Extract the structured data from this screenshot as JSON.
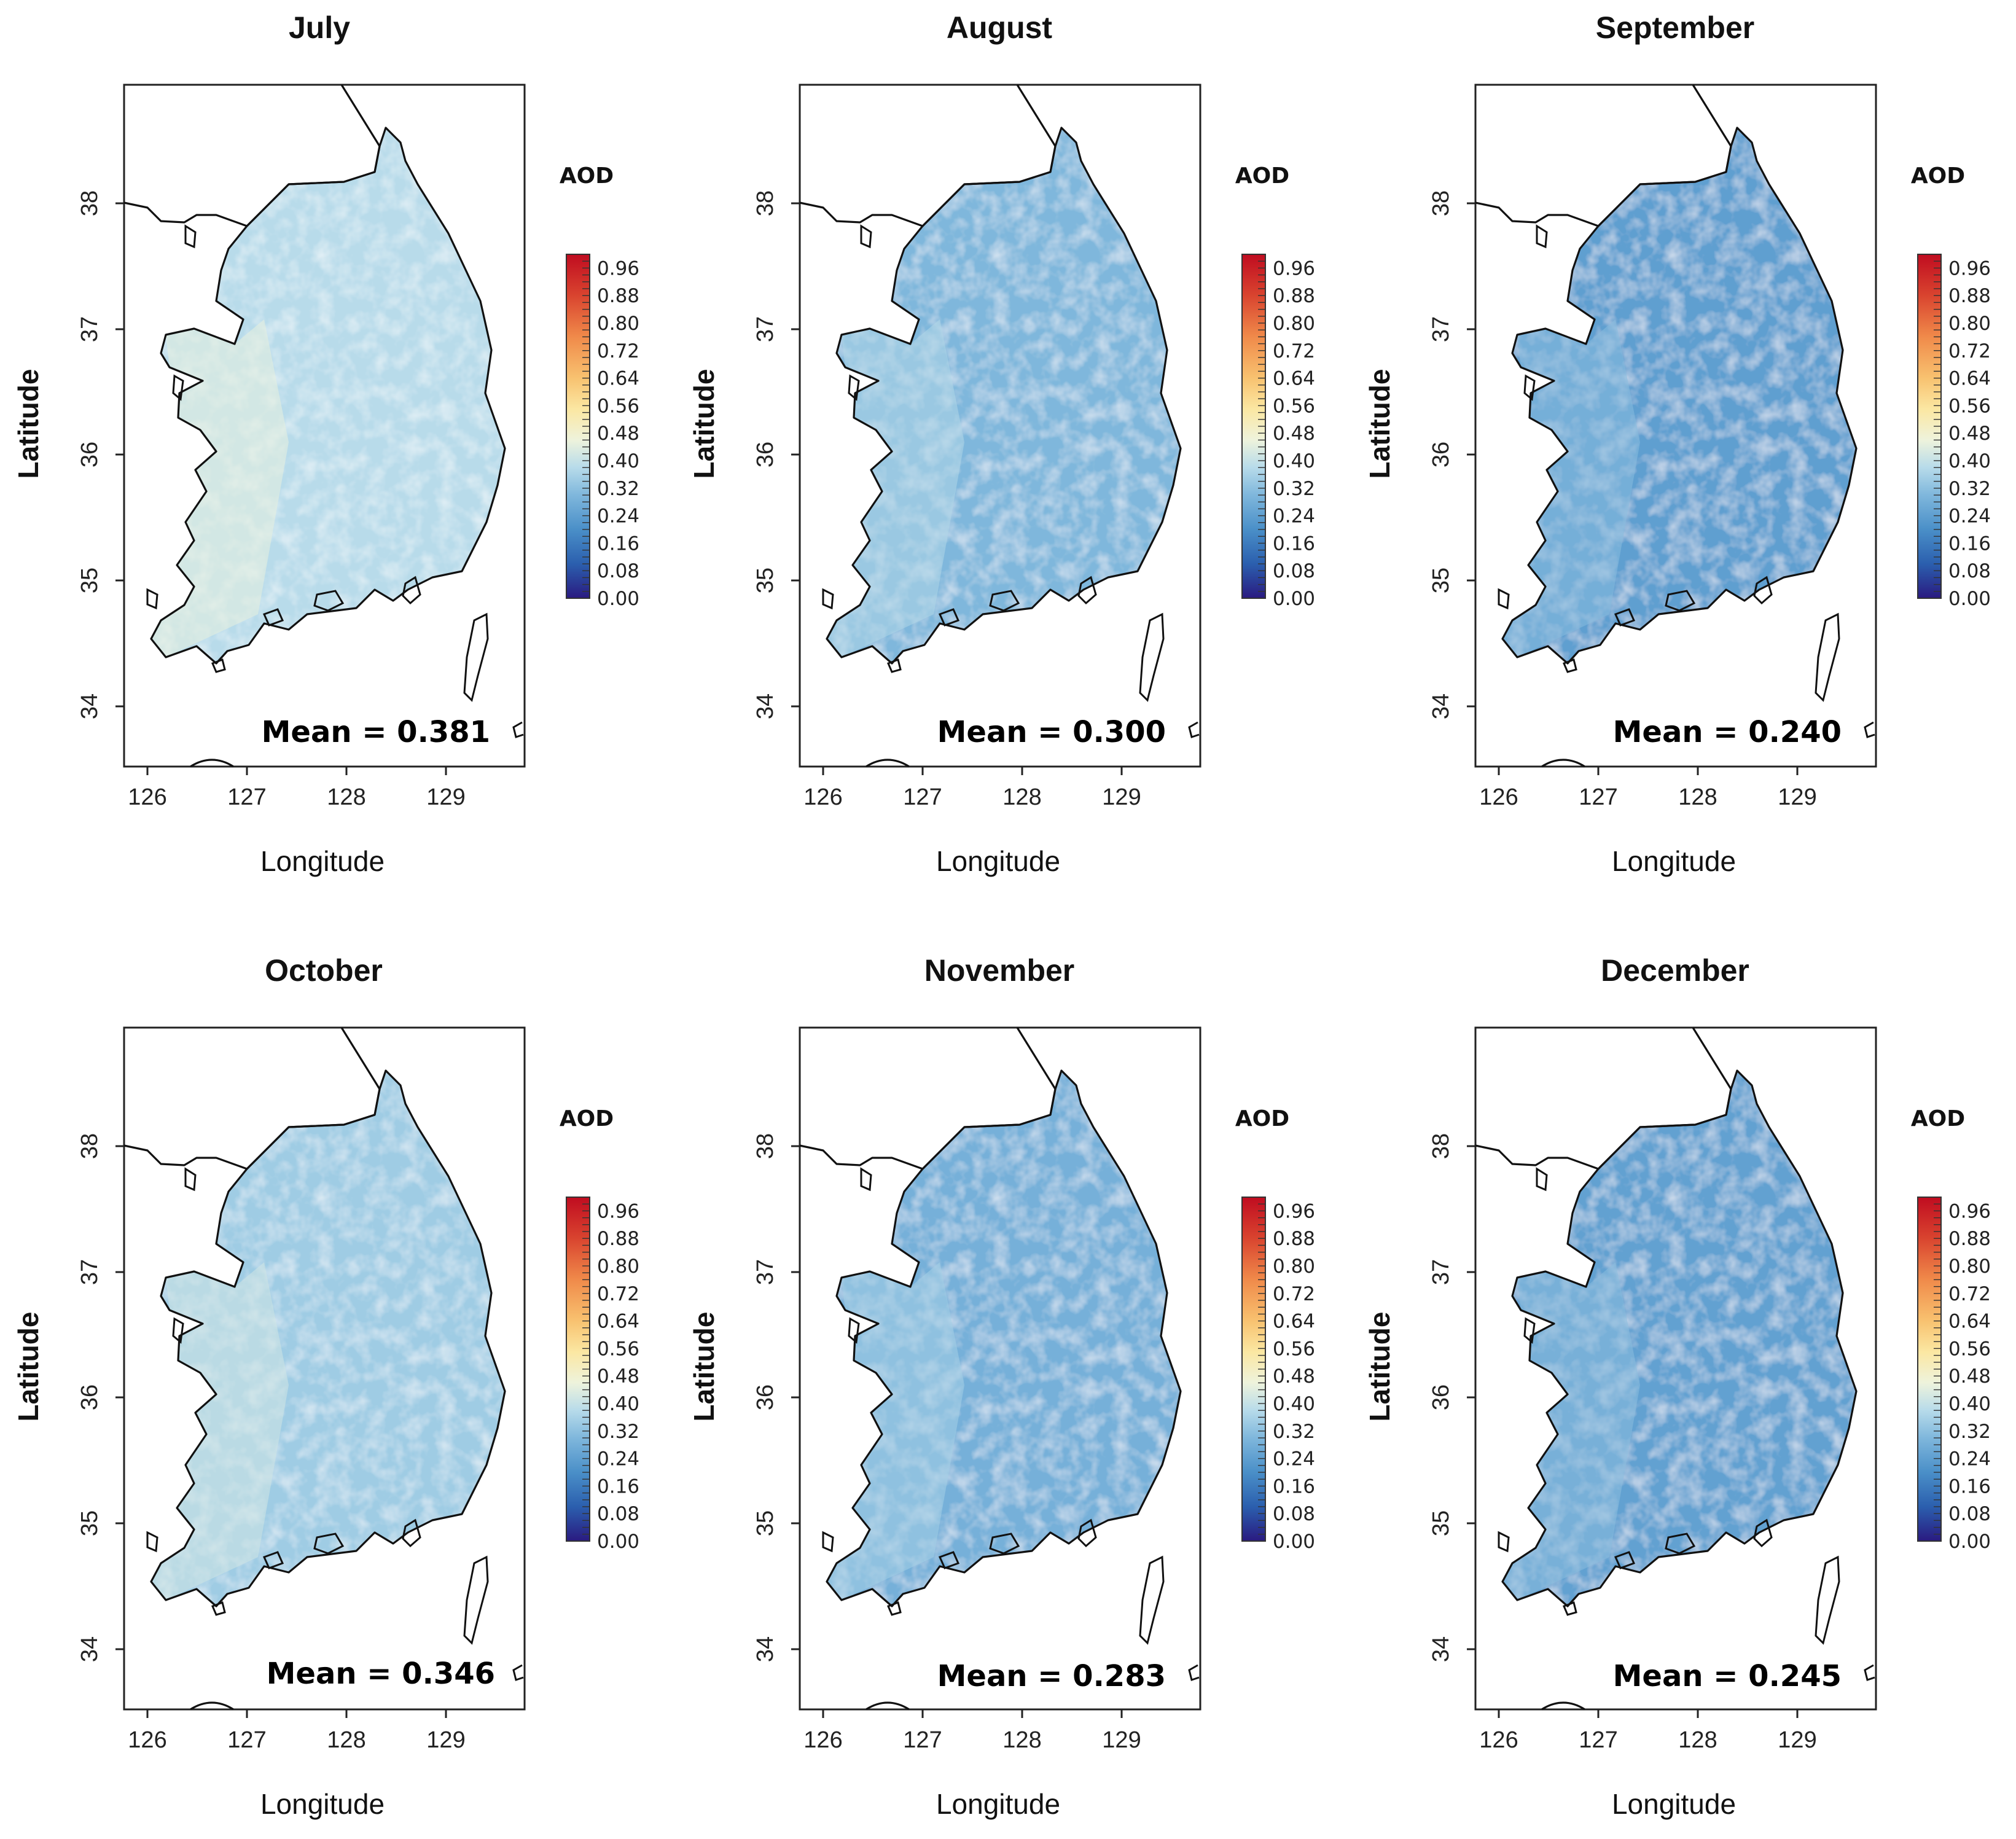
{
  "figure": {
    "legend_title": "AOD",
    "x_label": "Longitude",
    "y_label": "Latitude",
    "colorbar_ticks": [
      "0.00",
      "0.08",
      "0.16",
      "0.24",
      "0.32",
      "0.40",
      "0.48",
      "0.56",
      "0.64",
      "0.72",
      "0.80",
      "0.88",
      "0.96"
    ],
    "colorbar_stops": [
      "#2a1a80",
      "#2b5fae",
      "#4a8fc8",
      "#7fb7dc",
      "#b7dbea",
      "#eef3dc",
      "#fbe7a2",
      "#f8c270",
      "#f08a4a",
      "#d9442f",
      "#c00c20"
    ],
    "lon_ticks": [
      "126",
      "127",
      "128",
      "129"
    ],
    "lat_ticks": [
      "34",
      "35",
      "36",
      "37",
      "38"
    ]
  },
  "panels": [
    {
      "month": "July",
      "mean_label": "Mean = 0.381",
      "mean": 0.381
    },
    {
      "month": "August",
      "mean_label": "Mean = 0.300",
      "mean": 0.3
    },
    {
      "month": "September",
      "mean_label": "Mean = 0.240",
      "mean": 0.24
    },
    {
      "month": "October",
      "mean_label": "Mean = 0.346",
      "mean": 0.346
    },
    {
      "month": "November",
      "mean_label": "Mean = 0.283",
      "mean": 0.283
    },
    {
      "month": "December",
      "mean_label": "Mean = 0.245",
      "mean": 0.245
    }
  ]
}
